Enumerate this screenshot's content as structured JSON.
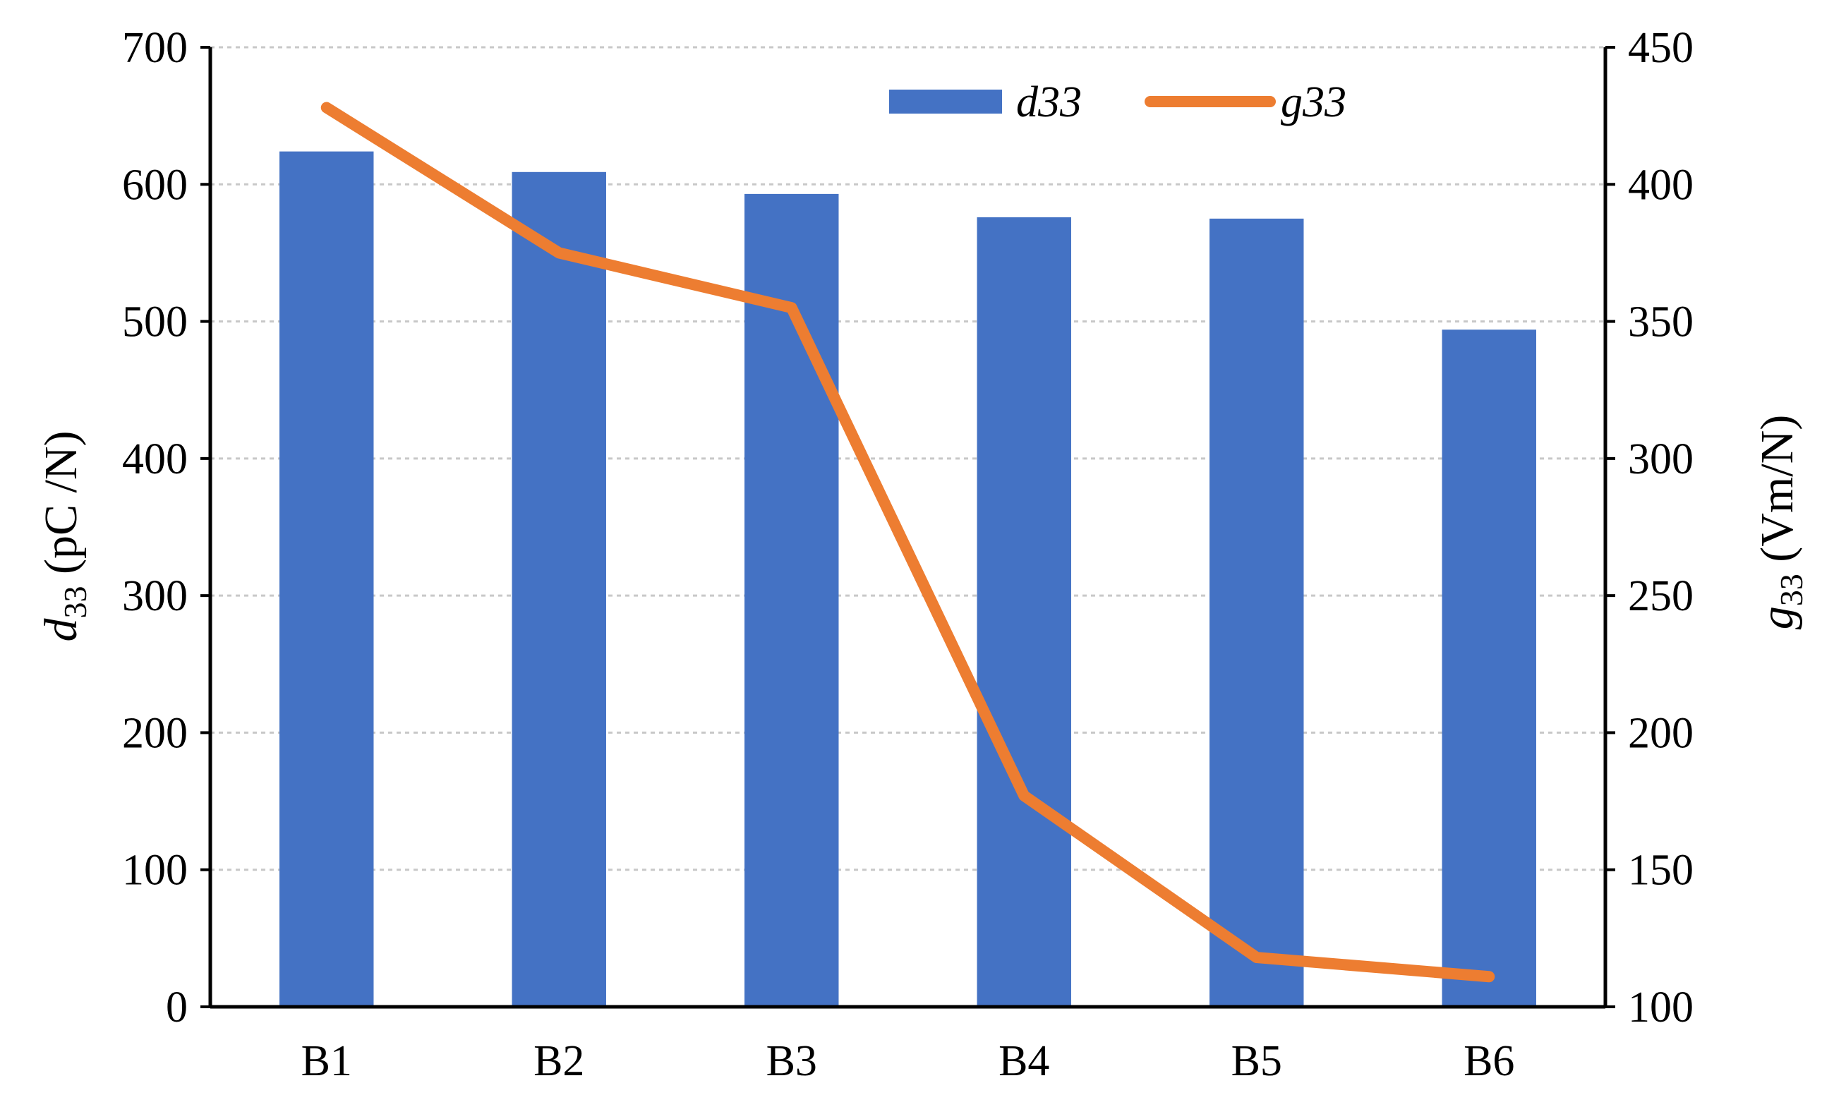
{
  "chart_data": {
    "type": "bar",
    "categories": [
      "B1",
      "B2",
      "B3",
      "B4",
      "B5",
      "B6"
    ],
    "series": [
      {
        "name": "d33",
        "type": "bar",
        "axis": "left",
        "values": [
          624,
          609,
          593,
          576,
          575,
          494
        ]
      },
      {
        "name": "g33",
        "type": "line",
        "axis": "right",
        "values": [
          428,
          375,
          355,
          177,
          118,
          111
        ]
      }
    ],
    "ylabel_left": {
      "main": "d",
      "sub": "33",
      "unit": " (pC /N)"
    },
    "ylabel_right": {
      "main": "g",
      "sub": "33",
      "unit": " (Vm/N)"
    },
    "ylim_left": [
      0,
      700
    ],
    "ylim_right": [
      100,
      450
    ],
    "yticks_left": [
      "0",
      "100",
      "200",
      "300",
      "400",
      "500",
      "600",
      "700"
    ],
    "yticks_right": [
      "100",
      "150",
      "200",
      "250",
      "300",
      "350",
      "400",
      "450"
    ],
    "grid": true,
    "legend_position": "top-center",
    "colors": {
      "bar": "#4472C4",
      "line": "#ED7D31",
      "grid": "#C8C8C8",
      "axis": "#000000"
    }
  }
}
